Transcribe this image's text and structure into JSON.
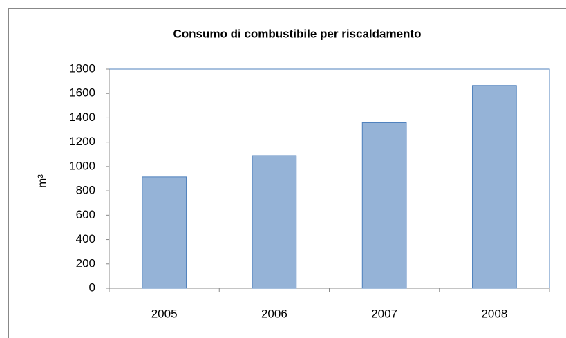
{
  "chart_data": {
    "type": "bar",
    "title": "Consumo di combustibile per riscaldamento",
    "y_label": "m³",
    "categories": [
      "2005",
      "2006",
      "2007",
      "2008"
    ],
    "values": [
      915,
      1090,
      1360,
      1665
    ],
    "color": "#95b3d7",
    "edge_color": "#4f81bd",
    "ylim": [
      0,
      1800
    ],
    "yticks": [
      0,
      200,
      400,
      600,
      800,
      1000,
      1200,
      1400,
      1600,
      1800
    ],
    "grid": false
  }
}
